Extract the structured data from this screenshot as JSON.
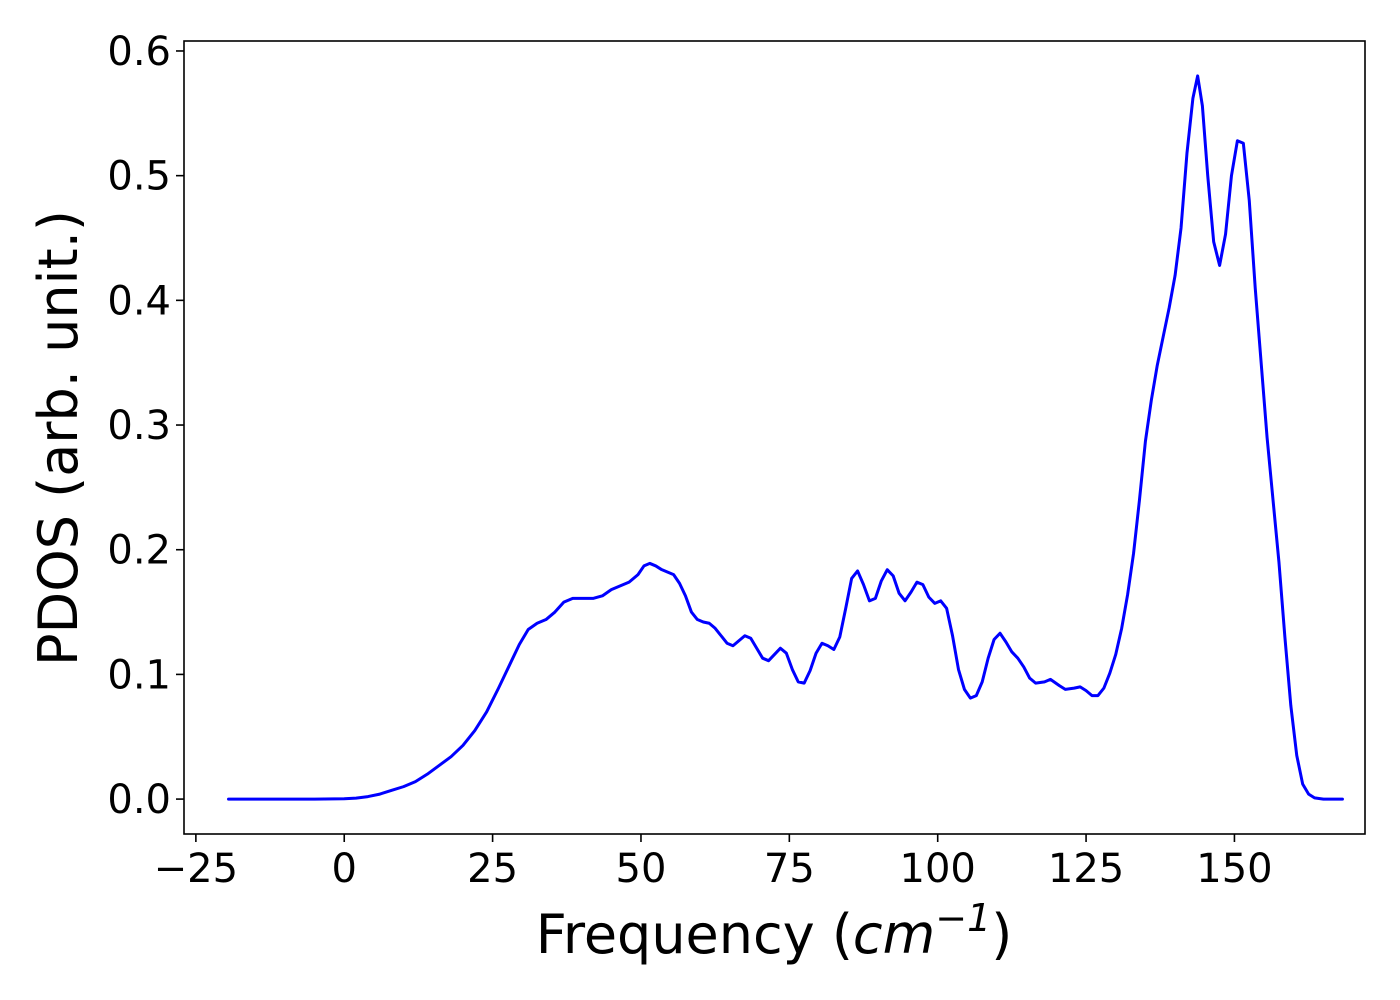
{
  "chart_data": {
    "type": "line",
    "title": "",
    "xlabel": "Frequency ($cm^{-1}$)",
    "xlabel_parts": {
      "prefix": "Frequency (",
      "math_base": "cm",
      "math_superscript": "−1",
      "suffix": ")"
    },
    "ylabel": "PDOS (arb. unit.)",
    "xlim": [
      -27,
      172
    ],
    "ylim": [
      -0.028,
      0.608
    ],
    "xticks": [
      -25,
      0,
      25,
      50,
      75,
      100,
      125,
      150
    ],
    "xtick_labels": [
      "−25",
      "0",
      "25",
      "50",
      "75",
      "100",
      "125",
      "150"
    ],
    "yticks": [
      0.0,
      0.1,
      0.2,
      0.3,
      0.4,
      0.5,
      0.6
    ],
    "ytick_labels": [
      "0.0",
      "0.1",
      "0.2",
      "0.3",
      "0.4",
      "0.5",
      "0.6"
    ],
    "grid": false,
    "series": [
      {
        "color": "#0000ff",
        "points": [
          [
            -19.5,
            0.0
          ],
          [
            -5,
            0.0
          ],
          [
            0,
            0.0003
          ],
          [
            2,
            0.0008
          ],
          [
            4,
            0.002
          ],
          [
            6,
            0.004
          ],
          [
            8,
            0.007
          ],
          [
            10,
            0.01
          ],
          [
            12,
            0.014
          ],
          [
            14,
            0.02
          ],
          [
            16,
            0.027
          ],
          [
            18,
            0.034
          ],
          [
            20,
            0.043
          ],
          [
            22,
            0.055
          ],
          [
            24,
            0.07
          ],
          [
            26,
            0.089
          ],
          [
            28,
            0.109
          ],
          [
            29.5,
            0.124
          ],
          [
            31,
            0.136
          ],
          [
            32.5,
            0.141
          ],
          [
            34,
            0.144
          ],
          [
            35.5,
            0.15
          ],
          [
            37,
            0.158
          ],
          [
            38.5,
            0.161
          ],
          [
            40,
            0.161
          ],
          [
            42,
            0.161
          ],
          [
            43.5,
            0.163
          ],
          [
            45,
            0.168
          ],
          [
            46.5,
            0.171
          ],
          [
            48,
            0.174
          ],
          [
            49.5,
            0.18
          ],
          [
            50.5,
            0.187
          ],
          [
            51.5,
            0.189
          ],
          [
            52.5,
            0.187
          ],
          [
            53.5,
            0.184
          ],
          [
            55.5,
            0.18
          ],
          [
            56.5,
            0.173
          ],
          [
            57.5,
            0.163
          ],
          [
            58.5,
            0.15
          ],
          [
            59.5,
            0.144
          ],
          [
            60.5,
            0.142
          ],
          [
            61.5,
            0.141
          ],
          [
            62.5,
            0.137
          ],
          [
            63.5,
            0.131
          ],
          [
            64.5,
            0.125
          ],
          [
            65.5,
            0.123
          ],
          [
            66.5,
            0.127
          ],
          [
            67.5,
            0.131
          ],
          [
            68.5,
            0.129
          ],
          [
            69.5,
            0.121
          ],
          [
            70.5,
            0.113
          ],
          [
            71.5,
            0.111
          ],
          [
            72.5,
            0.116
          ],
          [
            73.5,
            0.121
          ],
          [
            74.5,
            0.117
          ],
          [
            75.5,
            0.104
          ],
          [
            76.5,
            0.094
          ],
          [
            77.5,
            0.093
          ],
          [
            78.5,
            0.103
          ],
          [
            79.5,
            0.117
          ],
          [
            80.5,
            0.125
          ],
          [
            81.5,
            0.123
          ],
          [
            82.5,
            0.12
          ],
          [
            83.5,
            0.13
          ],
          [
            84.5,
            0.153
          ],
          [
            85.5,
            0.177
          ],
          [
            86.5,
            0.183
          ],
          [
            87.5,
            0.172
          ],
          [
            88.5,
            0.159
          ],
          [
            89.5,
            0.161
          ],
          [
            90.5,
            0.175
          ],
          [
            91.5,
            0.184
          ],
          [
            92.5,
            0.179
          ],
          [
            93.5,
            0.165
          ],
          [
            94.5,
            0.159
          ],
          [
            95.5,
            0.166
          ],
          [
            96.5,
            0.174
          ],
          [
            97.5,
            0.172
          ],
          [
            98.5,
            0.162
          ],
          [
            99.5,
            0.157
          ],
          [
            100.5,
            0.159
          ],
          [
            101.5,
            0.153
          ],
          [
            102.5,
            0.131
          ],
          [
            103.5,
            0.104
          ],
          [
            104.5,
            0.088
          ],
          [
            105.5,
            0.081
          ],
          [
            106.5,
            0.083
          ],
          [
            107.5,
            0.094
          ],
          [
            108.5,
            0.113
          ],
          [
            109.5,
            0.128
          ],
          [
            110.5,
            0.133
          ],
          [
            111.5,
            0.126
          ],
          [
            112.5,
            0.118
          ],
          [
            113.5,
            0.113
          ],
          [
            114.5,
            0.106
          ],
          [
            115.5,
            0.097
          ],
          [
            116.5,
            0.093
          ],
          [
            118,
            0.094
          ],
          [
            119,
            0.096
          ],
          [
            120.5,
            0.091
          ],
          [
            121.5,
            0.088
          ],
          [
            123,
            0.089
          ],
          [
            124,
            0.09
          ],
          [
            125,
            0.087
          ],
          [
            126,
            0.083
          ],
          [
            127,
            0.083
          ],
          [
            128,
            0.089
          ],
          [
            129,
            0.101
          ],
          [
            130,
            0.116
          ],
          [
            131,
            0.137
          ],
          [
            132,
            0.164
          ],
          [
            133,
            0.197
          ],
          [
            134,
            0.24
          ],
          [
            135,
            0.287
          ],
          [
            136,
            0.32
          ],
          [
            137,
            0.348
          ],
          [
            138,
            0.371
          ],
          [
            139,
            0.394
          ],
          [
            140,
            0.42
          ],
          [
            141,
            0.458
          ],
          [
            142,
            0.518
          ],
          [
            143,
            0.562
          ],
          [
            143.8,
            0.58
          ],
          [
            144.6,
            0.556
          ],
          [
            145.5,
            0.5
          ],
          [
            146.5,
            0.447
          ],
          [
            147.5,
            0.428
          ],
          [
            148.5,
            0.453
          ],
          [
            149.5,
            0.5
          ],
          [
            150.5,
            0.528
          ],
          [
            151.5,
            0.526
          ],
          [
            152.5,
            0.48
          ],
          [
            153.5,
            0.41
          ],
          [
            154.5,
            0.35
          ],
          [
            155.5,
            0.29
          ],
          [
            156.5,
            0.24
          ],
          [
            157.5,
            0.19
          ],
          [
            158.5,
            0.13
          ],
          [
            159.5,
            0.075
          ],
          [
            160.5,
            0.035
          ],
          [
            161.5,
            0.012
          ],
          [
            162.5,
            0.004
          ],
          [
            163.5,
            0.001
          ],
          [
            165,
            0.0
          ],
          [
            168.2,
            0.0
          ]
        ]
      }
    ]
  }
}
